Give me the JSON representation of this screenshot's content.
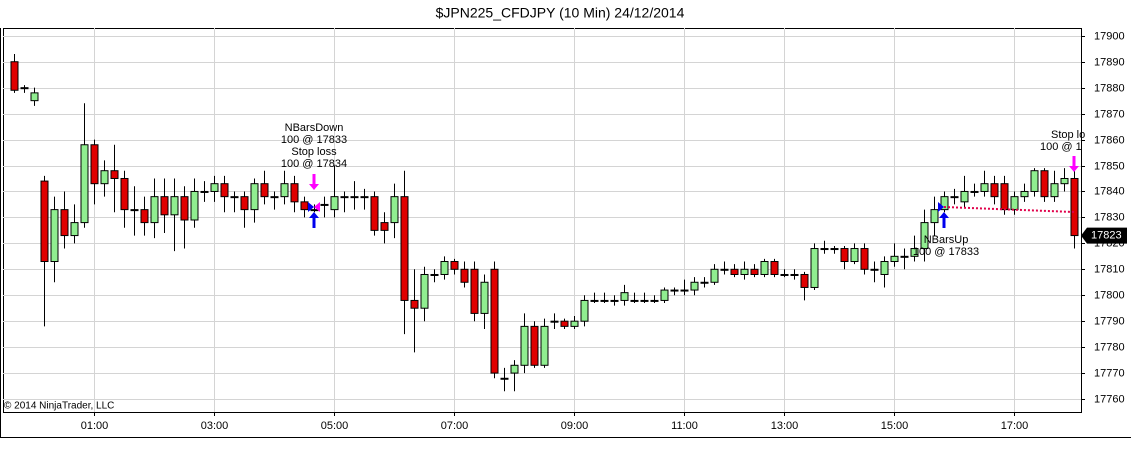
{
  "chart_data": {
    "type": "candlestick",
    "title": "$JPN225_CFDJPY (10 Min)  24/12/2014",
    "copyright": "© 2014 NinjaTrader, LLC",
    "categories": [
      null,
      null,
      null,
      null,
      null,
      null,
      null,
      null,
      "01:00",
      null,
      null,
      null,
      null,
      null,
      null,
      null,
      null,
      null,
      null,
      null,
      "03:00",
      null,
      null,
      null,
      null,
      null,
      null,
      null,
      null,
      null,
      null,
      null,
      "05:00",
      null,
      null,
      null,
      null,
      null,
      null,
      null,
      null,
      null,
      null,
      null,
      "07:00",
      null,
      null,
      null,
      null,
      null,
      null,
      null,
      null,
      null,
      null,
      null,
      "09:00",
      null,
      null,
      null,
      null,
      null,
      null,
      null,
      null,
      null,
      null,
      "11:00",
      null,
      null,
      null,
      null,
      null,
      null,
      null,
      null,
      null,
      "13:00",
      null,
      null,
      null,
      null,
      null,
      null,
      null,
      null,
      null,
      null,
      "15:00",
      null,
      null,
      null,
      null,
      null,
      null,
      null,
      null,
      null,
      null,
      null,
      "17:00",
      null,
      null,
      null,
      null,
      null,
      null
    ],
    "open": [
      17890,
      17880,
      17875,
      17844,
      17813,
      17833,
      17823,
      17828,
      17858,
      17843,
      17848,
      17845,
      17833,
      17833,
      17828,
      17838,
      17831,
      17838,
      17829,
      17840,
      17840,
      17843,
      17838,
      17838,
      17833,
      17843,
      17838,
      17838,
      17843,
      17836,
      17833,
      17835,
      17833,
      17838,
      17838,
      17838,
      17838,
      17828,
      17828,
      17838,
      17798,
      17795,
      17808,
      17808,
      17813,
      17810,
      17810,
      17793,
      17810,
      17768,
      17770,
      17773,
      17788,
      17773,
      17790,
      17790,
      17788,
      17790,
      17798,
      17798,
      17798,
      17798,
      17798,
      17798,
      17798,
      17798,
      17802,
      17802,
      17802,
      17805,
      17805,
      17810,
      17810,
      17808,
      17810,
      17808,
      17813,
      17808,
      17808,
      17808,
      17803,
      17818,
      17818,
      17818,
      17813,
      17818,
      17810,
      17808,
      17813,
      17815,
      17815,
      17818,
      17828,
      17833,
      17838,
      17836,
      17840,
      17840,
      17843,
      17843,
      17833,
      17838,
      17840,
      17848,
      17838,
      17843,
      17845
    ],
    "high": [
      17893,
      17881,
      17880,
      17846,
      17838,
      17840,
      17835,
      17874,
      17860,
      17852,
      17858,
      17848,
      17842,
      17838,
      17845,
      17845,
      17845,
      17842,
      17845,
      17844,
      17846,
      17846,
      17840,
      17840,
      17845,
      17848,
      17840,
      17848,
      17846,
      17838,
      17835,
      17838,
      17850,
      17840,
      17844,
      17841,
      17840,
      17832,
      17843,
      17848,
      17810,
      17811,
      17810,
      17815,
      17814,
      17813,
      17813,
      17808,
      17813,
      17772,
      17775,
      17793,
      17790,
      17791,
      17793,
      17791,
      17792,
      17800,
      17801,
      17801,
      17800,
      17804,
      17801,
      17801,
      17800,
      17803,
      17803,
      17806,
      17807,
      17807,
      17812,
      17813,
      17812,
      17813,
      17812,
      17814,
      17814,
      17810,
      17810,
      17809,
      17820,
      17821,
      17819,
      17819,
      17820,
      17820,
      17813,
      17815,
      17820,
      17818,
      17823,
      17833,
      17838,
      17840,
      17841,
      17846,
      17843,
      17848,
      17846,
      17846,
      17840,
      17843,
      17849,
      17849,
      17848,
      17849,
      17848
    ],
    "low": [
      17878,
      17878,
      17873,
      17788,
      17805,
      17818,
      17820,
      17826,
      17835,
      17838,
      17832,
      17826,
      17823,
      17823,
      17822,
      17824,
      17817,
      17818,
      17826,
      17836,
      17836,
      17832,
      17832,
      17826,
      17828,
      17835,
      17833,
      17835,
      17832,
      17830,
      17832,
      17830,
      17830,
      17832,
      17833,
      17833,
      17823,
      17820,
      17822,
      17785,
      17778,
      17790,
      17805,
      17806,
      17808,
      17803,
      17790,
      17787,
      17768,
      17763,
      17763,
      17770,
      17772,
      17772,
      17787,
      17787,
      17787,
      17788,
      17797,
      17797,
      17796,
      17796,
      17797,
      17797,
      17797,
      17797,
      17800,
      17800,
      17800,
      17803,
      17804,
      17808,
      17807,
      17806,
      17807,
      17807,
      17807,
      17807,
      17806,
      17798,
      17802,
      17816,
      17816,
      17810,
      17812,
      17808,
      17805,
      17803,
      17811,
      17810,
      17813,
      17813,
      17823,
      17832,
      17835,
      17834,
      17838,
      17838,
      17835,
      17831,
      17831,
      17836,
      17838,
      17836,
      17836,
      17840,
      17818
    ],
    "close": [
      17879,
      17880,
      17878,
      17813,
      17833,
      17823,
      17828,
      17858,
      17843,
      17848,
      17845,
      17833,
      17833,
      17828,
      17838,
      17831,
      17838,
      17829,
      17840,
      17840,
      17843,
      17838,
      17838,
      17833,
      17843,
      17838,
      17838,
      17843,
      17836,
      17833,
      17833,
      17835,
      17838,
      17838,
      17838,
      17838,
      17825,
      17825,
      17838,
      17798,
      17795,
      17808,
      17808,
      17813,
      17810,
      17805,
      17793,
      17805,
      17770,
      17768,
      17773,
      17788,
      17773,
      17788,
      17790,
      17788,
      17790,
      17798,
      17798,
      17798,
      17798,
      17801,
      17798,
      17798,
      17798,
      17802,
      17802,
      17802,
      17805,
      17805,
      17810,
      17810,
      17808,
      17810,
      17808,
      17813,
      17808,
      17808,
      17808,
      17803,
      17818,
      17818,
      17818,
      17813,
      17818,
      17810,
      17810,
      17813,
      17815,
      17815,
      17818,
      17828,
      17833,
      17838,
      17838,
      17840,
      17840,
      17843,
      17838,
      17833,
      17838,
      17840,
      17848,
      17838,
      17843,
      17845,
      17823
    ],
    "up_color": "#90ee90",
    "down_color": "#e00000",
    "ylim": [
      17755,
      17903
    ],
    "yticks": [
      17760,
      17770,
      17780,
      17790,
      17800,
      17810,
      17820,
      17830,
      17840,
      17850,
      17860,
      17870,
      17880,
      17890,
      17900
    ],
    "grid": true,
    "last_price": 17823,
    "annotations": [
      {
        "lines": [
          "NBarsDown",
          "100 @ 17833",
          "Stop loss",
          "100 @ 17834"
        ]
      },
      {
        "lines": [
          "NBarsUp",
          "100 @ 17833"
        ]
      },
      {
        "lines": [
          "Stop lo",
          "100 @ 1"
        ]
      }
    ]
  }
}
